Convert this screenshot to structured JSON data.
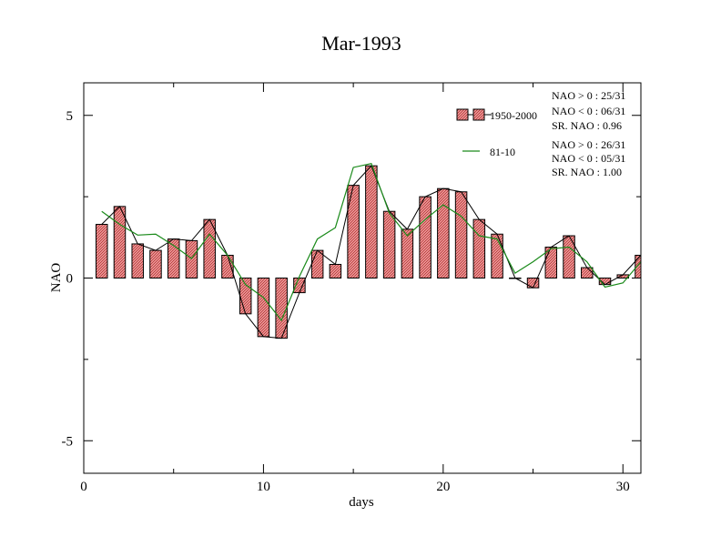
{
  "chart_data": {
    "type": "bar",
    "title": "Mar-1993",
    "xlabel": "days",
    "ylabel": "NAO",
    "xlim": [
      0,
      31
    ],
    "ylim": [
      -6,
      6
    ],
    "x_ticks": [
      0,
      10,
      20,
      30
    ],
    "y_ticks": [
      5,
      0,
      -5
    ],
    "x_tick_labels": [
      "0",
      "10",
      "20",
      "30"
    ],
    "y_tick_labels": [
      "5",
      "0",
      "-5"
    ],
    "grid": false,
    "legend_position": "top-right",
    "colors": {
      "bar_fill": "#f4a3a3",
      "bar_hatch": "#c0392b",
      "line_1950": "#000000",
      "line_8110": "#1a8a1a"
    },
    "x": [
      1,
      2,
      3,
      4,
      5,
      6,
      7,
      8,
      9,
      10,
      11,
      12,
      13,
      14,
      15,
      16,
      17,
      18,
      19,
      20,
      21,
      22,
      23,
      24,
      25,
      26,
      27,
      28,
      29,
      30,
      31
    ],
    "series": [
      {
        "name": "1950-2000",
        "style": "bar+line",
        "values": [
          1.65,
          2.2,
          1.05,
          0.85,
          1.2,
          1.15,
          1.8,
          0.7,
          -1.1,
          -1.8,
          -1.85,
          -0.45,
          0.85,
          0.42,
          2.85,
          3.45,
          2.05,
          1.5,
          2.5,
          2.75,
          2.65,
          1.8,
          1.35,
          0.0,
          -0.3,
          0.95,
          1.3,
          0.32,
          -0.2,
          0.1,
          0.7
        ]
      },
      {
        "name": "81-10",
        "style": "line",
        "values": [
          2.05,
          1.65,
          1.32,
          1.35,
          1.0,
          0.6,
          1.35,
          0.7,
          -0.2,
          -0.6,
          -1.3,
          0.05,
          1.2,
          1.55,
          3.4,
          3.52,
          2.0,
          1.3,
          1.8,
          2.25,
          1.9,
          1.3,
          1.2,
          0.15,
          0.5,
          0.9,
          0.95,
          0.5,
          -0.28,
          -0.15,
          0.5
        ]
      }
    ],
    "stats": [
      {
        "series": "1950-2000",
        "lines": [
          "NAO > 0 : 25/31",
          "NAO < 0 : 06/31",
          "SR. NAO :  0.96"
        ]
      },
      {
        "series": "81-10",
        "lines": [
          "NAO > 0 : 26/31",
          "NAO < 0 : 05/31",
          "SR. NAO :  1.00"
        ]
      }
    ]
  }
}
